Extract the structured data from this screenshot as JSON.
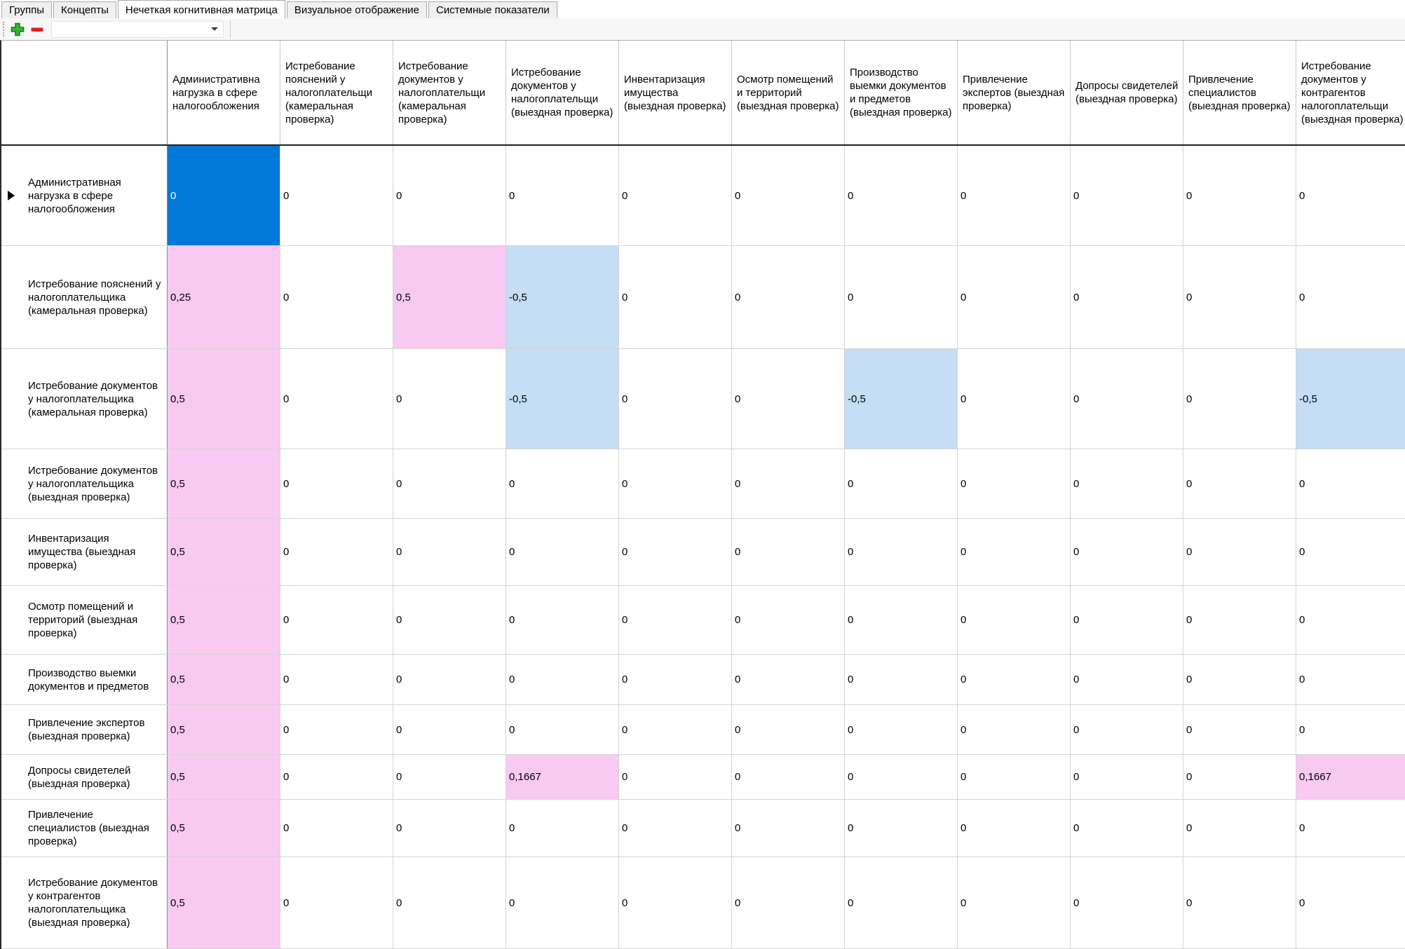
{
  "tabs": {
    "items": [
      {
        "label": "Группы"
      },
      {
        "label": "Концепты"
      },
      {
        "label": "Нечеткая когнитивная матрица"
      },
      {
        "label": "Визуальное отображение"
      },
      {
        "label": "Системные показатели"
      }
    ],
    "active_label": "Нечеткая когнитивная матрица"
  },
  "toolbar": {
    "add_icon": "plus-icon",
    "remove_icon": "minus-icon",
    "selector_value": "",
    "selector_arrow_icon": "chevron-down-icon"
  },
  "colors": {
    "positive_cell": "#f8caf2",
    "negative_cell": "#c5ddf5",
    "selected_cell": "#0078d7",
    "selected_cell_text": "#ffffff",
    "add_icon_green": "#36b336",
    "remove_icon_red": "#df2424"
  },
  "matrix": {
    "selected": {
      "row": 0,
      "col": 0
    },
    "columns": [
      "Административна нагрузка в сфере налогообложения",
      "Истребование пояснений у налогоплательщи (камеральная проверка)",
      "Истребование документов у налогоплательщи (камеральная проверка)",
      "Истребование документов у налогоплательщи (выездная проверка)",
      "Инвентаризация имущества (выездная проверка)",
      "Осмотр помещений и территорий (выездная проверка)",
      "Производство выемки документов и предметов (выездная проверка)",
      "Привлечение экспертов (выездная проверка)",
      "Допросы свидетелей (выездная проверка)",
      "Привлечение специалистов (выездная проверка)",
      "Истребование документов у контрагентов налогоплательщи (выездная проверка)"
    ],
    "rows": [
      {
        "header": "Административная нагрузка в сфере налогообложения",
        "values": [
          "0",
          "0",
          "0",
          "0",
          "0",
          "0",
          "0",
          "0",
          "0",
          "0",
          "0"
        ]
      },
      {
        "header": "Истребование пояснений у налогоплательщика (камеральная проверка)",
        "values": [
          "0,25",
          "0",
          "0,5",
          "-0,5",
          "0",
          "0",
          "0",
          "0",
          "0",
          "0",
          "0"
        ]
      },
      {
        "header": "Истребование документов у налогоплательщика (камеральная проверка)",
        "values": [
          "0,5",
          "0",
          "0",
          "-0,5",
          "0",
          "0",
          "-0,5",
          "0",
          "0",
          "0",
          "-0,5"
        ]
      },
      {
        "header": "Истребование документов у налогоплательщика (выездная проверка)",
        "values": [
          "0,5",
          "0",
          "0",
          "0",
          "0",
          "0",
          "0",
          "0",
          "0",
          "0",
          "0"
        ]
      },
      {
        "header": "Инвентаризация имущества (выездная проверка)",
        "values": [
          "0,5",
          "0",
          "0",
          "0",
          "0",
          "0",
          "0",
          "0",
          "0",
          "0",
          "0"
        ]
      },
      {
        "header": "Осмотр помещений и территорий (выездная проверка)",
        "values": [
          "0,5",
          "0",
          "0",
          "0",
          "0",
          "0",
          "0",
          "0",
          "0",
          "0",
          "0"
        ]
      },
      {
        "header": "Производство выемки документов и предметов",
        "values": [
          "0,5",
          "0",
          "0",
          "0",
          "0",
          "0",
          "0",
          "0",
          "0",
          "0",
          "0"
        ]
      },
      {
        "header": "Привлечение экспертов (выездная проверка)",
        "values": [
          "0,5",
          "0",
          "0",
          "0",
          "0",
          "0",
          "0",
          "0",
          "0",
          "0",
          "0"
        ]
      },
      {
        "header": "Допросы свидетелей (выездная проверка)",
        "values": [
          "0,5",
          "0",
          "0",
          "0,1667",
          "0",
          "0",
          "0",
          "0",
          "0",
          "0",
          "0,1667"
        ]
      },
      {
        "header": "Привлечение специалистов (выездная проверка)",
        "values": [
          "0,5",
          "0",
          "0",
          "0",
          "0",
          "0",
          "0",
          "0",
          "0",
          "0",
          "0"
        ]
      },
      {
        "header": "Истребование документов у контрагентов налогоплательщика (выездная проверка)",
        "values": [
          "0,5",
          "0",
          "0",
          "0",
          "0",
          "0",
          "0",
          "0",
          "0",
          "0",
          "0"
        ]
      }
    ]
  }
}
